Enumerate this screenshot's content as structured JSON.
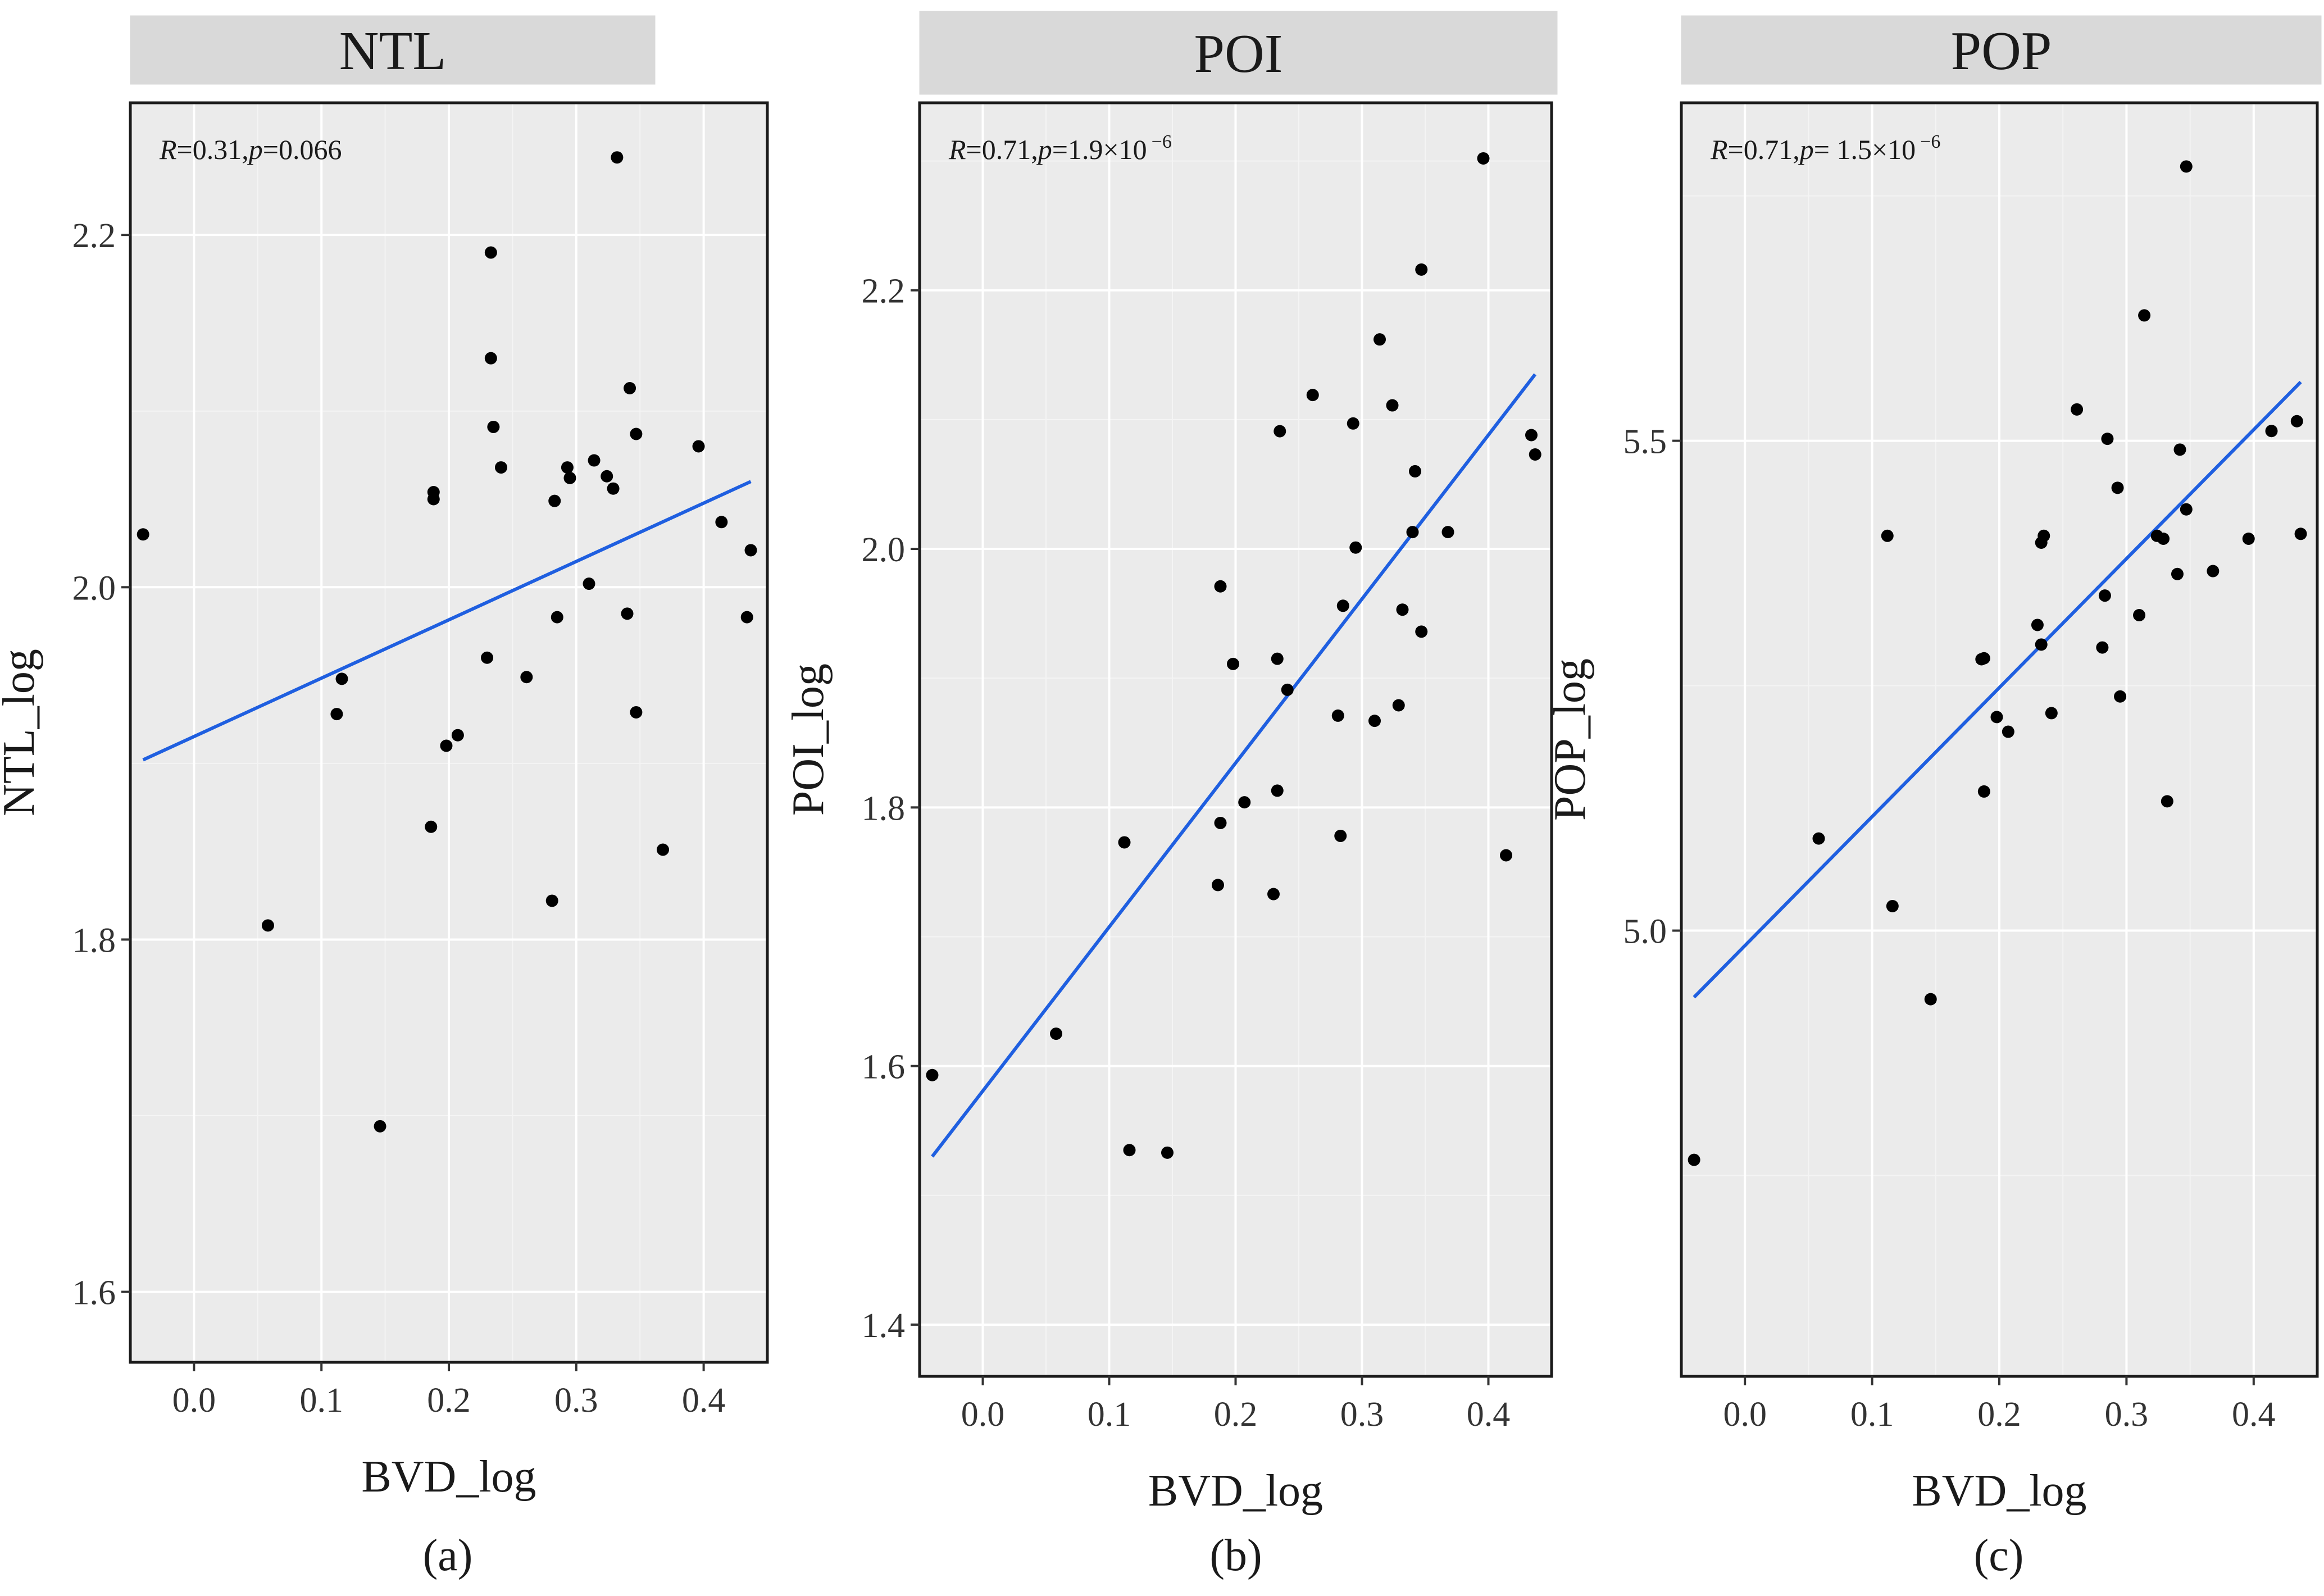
{
  "chart_data": [
    {
      "type": "scatter",
      "panel_label": "(a)",
      "strip_title": "NTL",
      "xlabel": "BVD_log",
      "ylabel": "NTL_log",
      "xlim": [
        -0.05,
        0.45
      ],
      "ylim": [
        1.56,
        2.275
      ],
      "xticks": [
        0.0,
        0.1,
        0.2,
        0.3,
        0.4
      ],
      "xtick_labels": [
        "0.0",
        "0.1",
        "0.2",
        "0.3",
        "0.4"
      ],
      "yticks": [
        1.6,
        1.8,
        2.0,
        2.2
      ],
      "ytick_labels": [
        "1.6",
        "1.8",
        "2.0",
        "2.2"
      ],
      "annotation": {
        "r": "R",
        "r_eq": "=0.31,",
        "p": "p",
        "p_eq": "=0.066",
        "sup": ""
      },
      "fit_line": {
        "x": [
          -0.04,
          0.437
        ],
        "y": [
          1.902,
          2.06
        ]
      },
      "points": [
        {
          "x": -0.04,
          "y": 2.03
        },
        {
          "x": 0.058,
          "y": 1.808
        },
        {
          "x": 0.112,
          "y": 1.928
        },
        {
          "x": 0.116,
          "y": 1.948
        },
        {
          "x": 0.146,
          "y": 1.694
        },
        {
          "x": 0.186,
          "y": 1.864
        },
        {
          "x": 0.188,
          "y": 2.054
        },
        {
          "x": 0.188,
          "y": 2.05
        },
        {
          "x": 0.198,
          "y": 1.91
        },
        {
          "x": 0.207,
          "y": 1.916
        },
        {
          "x": 0.23,
          "y": 1.96
        },
        {
          "x": 0.233,
          "y": 2.19
        },
        {
          "x": 0.233,
          "y": 2.13
        },
        {
          "x": 0.235,
          "y": 2.091
        },
        {
          "x": 0.241,
          "y": 2.068
        },
        {
          "x": 0.261,
          "y": 1.949
        },
        {
          "x": 0.281,
          "y": 1.822
        },
        {
          "x": 0.283,
          "y": 2.049
        },
        {
          "x": 0.285,
          "y": 1.983
        },
        {
          "x": 0.293,
          "y": 2.068
        },
        {
          "x": 0.295,
          "y": 2.062
        },
        {
          "x": 0.31,
          "y": 2.002
        },
        {
          "x": 0.314,
          "y": 2.072
        },
        {
          "x": 0.324,
          "y": 2.063
        },
        {
          "x": 0.329,
          "y": 2.056
        },
        {
          "x": 0.332,
          "y": 2.244
        },
        {
          "x": 0.34,
          "y": 1.985
        },
        {
          "x": 0.342,
          "y": 2.113
        },
        {
          "x": 0.347,
          "y": 1.929
        },
        {
          "x": 0.347,
          "y": 2.087
        },
        {
          "x": 0.368,
          "y": 1.851
        },
        {
          "x": 0.396,
          "y": 2.08
        },
        {
          "x": 0.414,
          "y": 2.037
        },
        {
          "x": 0.434,
          "y": 1.983
        },
        {
          "x": 0.437,
          "y": 2.021
        }
      ]
    },
    {
      "type": "scatter",
      "panel_label": "(b)",
      "strip_title": "POI",
      "xlabel": "BVD_log",
      "ylabel": "POI_log",
      "xlim": [
        -0.05,
        0.45
      ],
      "ylim": [
        1.36,
        2.345
      ],
      "xticks": [
        0.0,
        0.1,
        0.2,
        0.3,
        0.4
      ],
      "xtick_labels": [
        "0.0",
        "0.1",
        "0.2",
        "0.3",
        "0.4"
      ],
      "yticks": [
        1.4,
        1.6,
        1.8,
        2.0,
        2.2
      ],
      "ytick_labels": [
        "1.4",
        "1.6",
        "1.8",
        "2.0",
        "2.2"
      ],
      "annotation": {
        "r": "R",
        "r_eq": "=0.71,",
        "p": "p",
        "p_eq": "=1.9×10",
        "sup": "−6"
      },
      "fit_line": {
        "x": [
          -0.04,
          0.437
        ],
        "y": [
          1.53,
          2.135
        ]
      },
      "points": [
        {
          "x": -0.04,
          "y": 1.593
        },
        {
          "x": 0.058,
          "y": 1.625
        },
        {
          "x": 0.112,
          "y": 1.773
        },
        {
          "x": 0.116,
          "y": 1.535
        },
        {
          "x": 0.146,
          "y": 1.533
        },
        {
          "x": 0.186,
          "y": 1.74
        },
        {
          "x": 0.188,
          "y": 1.971
        },
        {
          "x": 0.188,
          "y": 1.788
        },
        {
          "x": 0.198,
          "y": 1.911
        },
        {
          "x": 0.207,
          "y": 1.804
        },
        {
          "x": 0.23,
          "y": 1.733
        },
        {
          "x": 0.233,
          "y": 1.915
        },
        {
          "x": 0.233,
          "y": 1.813
        },
        {
          "x": 0.235,
          "y": 2.091
        },
        {
          "x": 0.241,
          "y": 1.891
        },
        {
          "x": 0.261,
          "y": 2.119
        },
        {
          "x": 0.281,
          "y": 1.871
        },
        {
          "x": 0.283,
          "y": 1.778
        },
        {
          "x": 0.285,
          "y": 1.956
        },
        {
          "x": 0.293,
          "y": 2.097
        },
        {
          "x": 0.295,
          "y": 2.001
        },
        {
          "x": 0.31,
          "y": 1.867
        },
        {
          "x": 0.314,
          "y": 2.162
        },
        {
          "x": 0.324,
          "y": 2.111
        },
        {
          "x": 0.329,
          "y": 1.879
        },
        {
          "x": 0.332,
          "y": 1.953
        },
        {
          "x": 0.34,
          "y": 2.013
        },
        {
          "x": 0.342,
          "y": 2.06
        },
        {
          "x": 0.347,
          "y": 1.936
        },
        {
          "x": 0.347,
          "y": 2.216
        },
        {
          "x": 0.368,
          "y": 2.013
        },
        {
          "x": 0.396,
          "y": 2.302
        },
        {
          "x": 0.414,
          "y": 1.763
        },
        {
          "x": 0.434,
          "y": 2.088
        },
        {
          "x": 0.437,
          "y": 2.073
        }
      ]
    },
    {
      "type": "scatter",
      "panel_label": "(c)",
      "strip_title": "POP",
      "xlabel": "BVD_log",
      "ylabel": "POP_log",
      "xlim": [
        -0.05,
        0.45
      ],
      "ylim": [
        4.545,
        5.845
      ],
      "xticks": [
        0.0,
        0.1,
        0.2,
        0.3,
        0.4
      ],
      "xtick_labels": [
        "0.0",
        "0.1",
        "0.2",
        "0.3",
        "0.4"
      ],
      "yticks": [
        5.0,
        5.5
      ],
      "ytick_labels": [
        "5.0",
        "5.5"
      ],
      "annotation": {
        "r": "R",
        "r_eq": "=0.71,",
        "p": "p",
        "p_eq": "= 1.5×10",
        "sup": "−6"
      },
      "fit_line": {
        "x": [
          -0.04,
          0.437
        ],
        "y": [
          4.932,
          5.56
        ]
      },
      "points": [
        {
          "x": -0.04,
          "y": 4.766
        },
        {
          "x": 0.058,
          "y": 5.094
        },
        {
          "x": 0.112,
          "y": 5.403
        },
        {
          "x": 0.116,
          "y": 5.025
        },
        {
          "x": 0.146,
          "y": 4.93
        },
        {
          "x": 0.186,
          "y": 5.277
        },
        {
          "x": 0.188,
          "y": 5.278
        },
        {
          "x": 0.188,
          "y": 5.142
        },
        {
          "x": 0.198,
          "y": 5.218
        },
        {
          "x": 0.207,
          "y": 5.203
        },
        {
          "x": 0.23,
          "y": 5.312
        },
        {
          "x": 0.233,
          "y": 5.396
        },
        {
          "x": 0.233,
          "y": 5.292
        },
        {
          "x": 0.235,
          "y": 5.403
        },
        {
          "x": 0.241,
          "y": 5.222
        },
        {
          "x": 0.261,
          "y": 5.532
        },
        {
          "x": 0.281,
          "y": 5.289
        },
        {
          "x": 0.283,
          "y": 5.342
        },
        {
          "x": 0.285,
          "y": 5.502
        },
        {
          "x": 0.293,
          "y": 5.452
        },
        {
          "x": 0.295,
          "y": 5.239
        },
        {
          "x": 0.31,
          "y": 5.322
        },
        {
          "x": 0.314,
          "y": 5.628
        },
        {
          "x": 0.324,
          "y": 5.403
        },
        {
          "x": 0.329,
          "y": 5.4
        },
        {
          "x": 0.332,
          "y": 5.132
        },
        {
          "x": 0.34,
          "y": 5.364
        },
        {
          "x": 0.342,
          "y": 5.491
        },
        {
          "x": 0.347,
          "y": 5.43
        },
        {
          "x": 0.347,
          "y": 5.78
        },
        {
          "x": 0.368,
          "y": 5.367
        },
        {
          "x": 0.396,
          "y": 5.4
        },
        {
          "x": 0.414,
          "y": 5.51
        },
        {
          "x": 0.434,
          "y": 5.52
        },
        {
          "x": 0.437,
          "y": 5.405
        }
      ]
    }
  ]
}
